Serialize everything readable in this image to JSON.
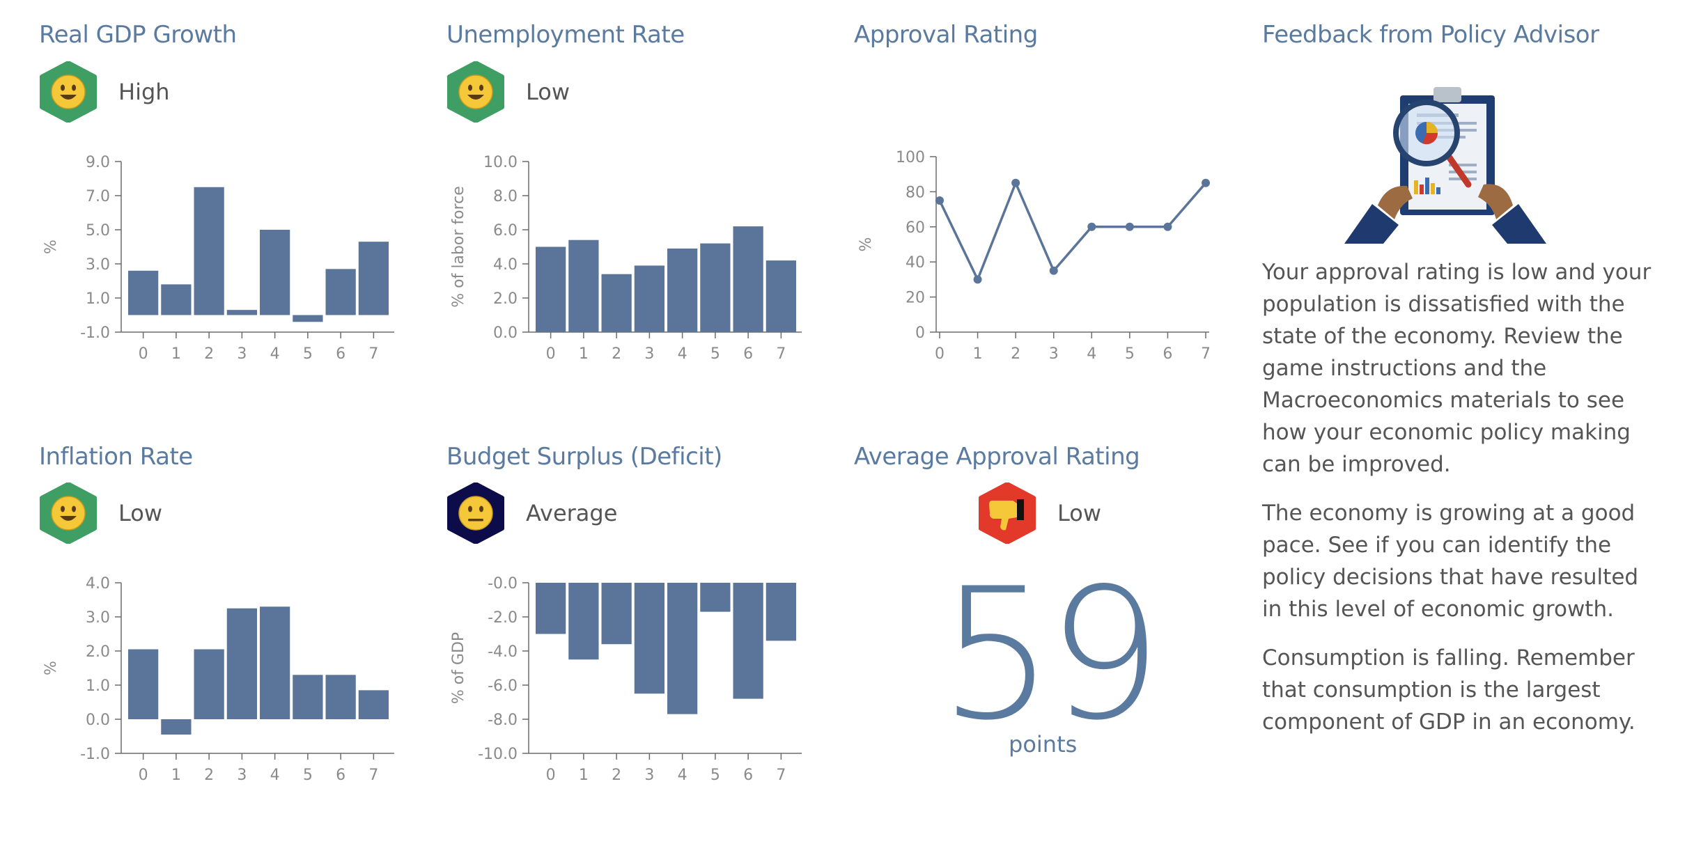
{
  "panels": {
    "gdp": {
      "title": "Real GDP Growth",
      "status": "High",
      "icon": "smiley-happy-icon"
    },
    "unemployment": {
      "title": "Unemployment Rate",
      "status": "Low",
      "icon": "smiley-happy-icon"
    },
    "approval": {
      "title": "Approval Rating"
    },
    "feedback": {
      "title": "Feedback from Policy Advisor"
    },
    "inflation": {
      "title": "Inflation Rate",
      "status": "Low",
      "icon": "smiley-happy-icon"
    },
    "budget": {
      "title": "Budget Surplus (Deficit)",
      "status": "Average",
      "icon": "smiley-neutral-icon"
    },
    "avg_approval": {
      "title": "Average Approval Rating",
      "status": "Low",
      "icon": "thumbs-down-icon",
      "value": "59",
      "unit": "points"
    }
  },
  "feedback_paragraphs": [
    "Your approval rating is low and your population is dissatisfied with the state of the economy. Review the game instructions and the Macroeconomics materials to see how your economic policy making can be improved.",
    "The economy is growing at a good pace. See if you can identify the policy decisions that have resulted in this level of economic growth.",
    "Consumption is falling. Remember that consumption is the largest component of GDP in an economy."
  ],
  "colors": {
    "bar": "#5a7599",
    "title": "#5a7aa0",
    "good": "#3f9e63",
    "neutral": "#0c0c4a",
    "bad": "#e2392b",
    "face": "#f5c83a"
  },
  "chart_data": [
    {
      "id": "gdp",
      "type": "bar",
      "categories": [
        "0",
        "1",
        "2",
        "3",
        "4",
        "5",
        "6",
        "7"
      ],
      "values": [
        2.6,
        1.8,
        7.5,
        0.3,
        5.0,
        -0.4,
        2.7,
        4.3
      ],
      "ylabel": "%",
      "ylim": [
        -1.0,
        9.0
      ],
      "yticks": [
        "9.0",
        "7.0",
        "5.0",
        "3.0",
        "1.0",
        "-1.0"
      ],
      "ytick_values": [
        9,
        7,
        5,
        3,
        1,
        -1
      ]
    },
    {
      "id": "unemployment",
      "type": "bar",
      "categories": [
        "0",
        "1",
        "2",
        "3",
        "4",
        "5",
        "6",
        "7"
      ],
      "values": [
        5.0,
        5.4,
        3.4,
        3.9,
        4.9,
        5.2,
        6.2,
        4.2
      ],
      "ylabel": "% of labor force",
      "ylim": [
        0,
        10.0
      ],
      "yticks": [
        "10.0",
        "8.0",
        "6.0",
        "4.0",
        "2.0",
        "0.0"
      ],
      "ytick_values": [
        10,
        8,
        6,
        4,
        2,
        0
      ]
    },
    {
      "id": "approval",
      "type": "line",
      "categories": [
        "0",
        "1",
        "2",
        "3",
        "4",
        "5",
        "6",
        "7"
      ],
      "values": [
        75,
        30,
        85,
        35,
        60,
        60,
        60,
        85
      ],
      "ylabel": "%",
      "ylim": [
        0,
        100
      ],
      "yticks": [
        "100",
        "80",
        "60",
        "40",
        "20",
        "0"
      ],
      "ytick_values": [
        100,
        80,
        60,
        40,
        20,
        0
      ]
    },
    {
      "id": "inflation",
      "type": "bar",
      "categories": [
        "0",
        "1",
        "2",
        "3",
        "4",
        "5",
        "6",
        "7"
      ],
      "values": [
        2.05,
        -0.45,
        2.05,
        3.25,
        3.3,
        1.3,
        1.3,
        0.85
      ],
      "ylabel": "%",
      "ylim": [
        -1.0,
        4.0
      ],
      "yticks": [
        "4.0",
        "3.0",
        "2.0",
        "1.0",
        "0.0",
        "-1.0"
      ],
      "ytick_values": [
        4,
        3,
        2,
        1,
        0,
        -1
      ]
    },
    {
      "id": "budget",
      "type": "bar",
      "categories": [
        "0",
        "1",
        "2",
        "3",
        "4",
        "5",
        "6",
        "7"
      ],
      "values": [
        -3.0,
        -4.5,
        -3.6,
        -6.5,
        -7.7,
        -1.7,
        -6.8,
        -3.4
      ],
      "ylabel": "% of GDP",
      "ylim": [
        -10.0,
        0
      ],
      "yticks": [
        "-0.0",
        "-2.0",
        "-4.0",
        "-6.0",
        "-8.0",
        "-10.0"
      ],
      "ytick_values": [
        0,
        -2,
        -4,
        -6,
        -8,
        -10
      ]
    }
  ]
}
